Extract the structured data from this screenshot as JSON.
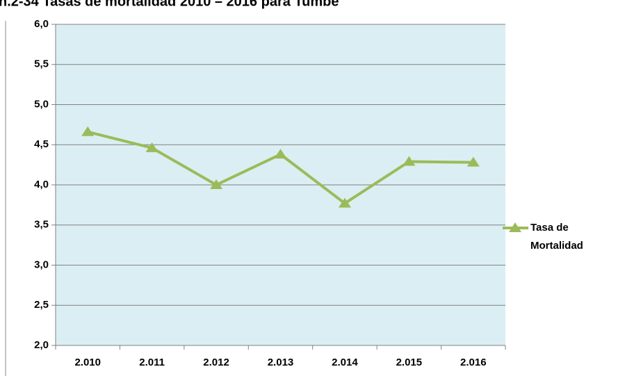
{
  "chart_data": {
    "type": "line",
    "title": "n.2-34 Tasas de mortalidad 2010 – 2016 para Tumbe",
    "categories": [
      "2.010",
      "2.011",
      "2.012",
      "2.013",
      "2.014",
      "2.015",
      "2.016"
    ],
    "series": [
      {
        "name": "Tasa de Mortalidad",
        "color": "#9bbb59",
        "values": [
          4.66,
          4.46,
          4.0,
          4.38,
          3.77,
          4.29,
          4.28
        ]
      }
    ],
    "ylim": [
      2.0,
      6.0
    ],
    "yticks": [
      {
        "value": 2.0,
        "label": "2,0"
      },
      {
        "value": 2.5,
        "label": "2,5"
      },
      {
        "value": 3.0,
        "label": "3,0"
      },
      {
        "value": 3.5,
        "label": "3,5"
      },
      {
        "value": 4.0,
        "label": "4,0"
      },
      {
        "value": 4.5,
        "label": "4,5"
      },
      {
        "value": 5.0,
        "label": "5,0"
      },
      {
        "value": 5.5,
        "label": "5,5"
      },
      {
        "value": 6.0,
        "label": "6,0"
      }
    ],
    "grid": true,
    "legend": "right"
  }
}
